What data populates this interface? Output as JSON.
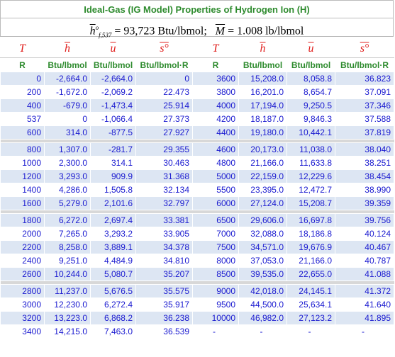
{
  "header": {
    "title": "Ideal-Gas (IG Model) Properties of Hydrogen Ion (H)",
    "formula": {
      "h_symbol": "h",
      "h_sup": "o",
      "h_sub": "f,537",
      "h_value": "= 93,723 Btu/lbmol;",
      "m_symbol": "M",
      "m_value": "= 1.008 lb/lbmol"
    }
  },
  "table": {
    "symbols": [
      "T",
      "h",
      "u",
      "s°",
      "T",
      "h",
      "u",
      "s°"
    ],
    "units": [
      "R",
      "Btu/lbmol",
      "Btu/lbmol",
      "Btu/lbmol·R",
      "R",
      "Btu/lbmol",
      "Btu/lbmol",
      "Btu/lbmol·R"
    ],
    "groups": [
      [
        [
          "0",
          "-2,664.0",
          "-2,664.0",
          "0",
          "3600",
          "15,208.0",
          "8,058.8",
          "36.823"
        ],
        [
          "200",
          "-1,672.0",
          "-2,069.2",
          "22.473",
          "3800",
          "16,201.0",
          "8,654.7",
          "37.091"
        ],
        [
          "400",
          "-679.0",
          "-1,473.4",
          "25.914",
          "4000",
          "17,194.0",
          "9,250.5",
          "37.346"
        ],
        [
          "537",
          "0",
          "-1,066.4",
          "27.373",
          "4200",
          "18,187.0",
          "9,846.3",
          "37.588"
        ],
        [
          "600",
          "314.0",
          "-877.5",
          "27.927",
          "4400",
          "19,180.0",
          "10,442.1",
          "37.819"
        ]
      ],
      [
        [
          "800",
          "1,307.0",
          "-281.7",
          "29.355",
          "4600",
          "20,173.0",
          "11,038.0",
          "38.040"
        ],
        [
          "1000",
          "2,300.0",
          "314.1",
          "30.463",
          "4800",
          "21,166.0",
          "11,633.8",
          "38.251"
        ],
        [
          "1200",
          "3,293.0",
          "909.9",
          "31.368",
          "5000",
          "22,159.0",
          "12,229.6",
          "38.454"
        ],
        [
          "1400",
          "4,286.0",
          "1,505.8",
          "32.134",
          "5500",
          "23,395.0",
          "12,472.7",
          "38.990"
        ],
        [
          "1600",
          "5,279.0",
          "2,101.6",
          "32.797",
          "6000",
          "27,124.0",
          "15,208.7",
          "39.359"
        ]
      ],
      [
        [
          "1800",
          "6,272.0",
          "2,697.4",
          "33.381",
          "6500",
          "29,606.0",
          "16,697.8",
          "39.756"
        ],
        [
          "2000",
          "7,265.0",
          "3,293.2",
          "33.905",
          "7000",
          "32,088.0",
          "18,186.8",
          "40.124"
        ],
        [
          "2200",
          "8,258.0",
          "3,889.1",
          "34.378",
          "7500",
          "34,571.0",
          "19,676.9",
          "40.467"
        ],
        [
          "2400",
          "9,251.0",
          "4,484.9",
          "34.810",
          "8000",
          "37,053.0",
          "21,166.0",
          "40.787"
        ],
        [
          "2600",
          "10,244.0",
          "5,080.7",
          "35.207",
          "8500",
          "39,535.0",
          "22,655.0",
          "41.088"
        ]
      ],
      [
        [
          "2800",
          "11,237.0",
          "5,676.5",
          "35.575",
          "9000",
          "42,018.0",
          "24,145.1",
          "41.372"
        ],
        [
          "3000",
          "12,230.0",
          "6,272.4",
          "35.917",
          "9500",
          "44,500.0",
          "25,634.1",
          "41.640"
        ],
        [
          "3200",
          "13,223.0",
          "6,868.2",
          "36.238",
          "10000",
          "46,982.0",
          "27,123.2",
          "41.895"
        ],
        [
          "3400",
          "14,215.0",
          "7,463.0",
          "36.539",
          "-",
          "-",
          "-",
          "-"
        ]
      ]
    ]
  }
}
